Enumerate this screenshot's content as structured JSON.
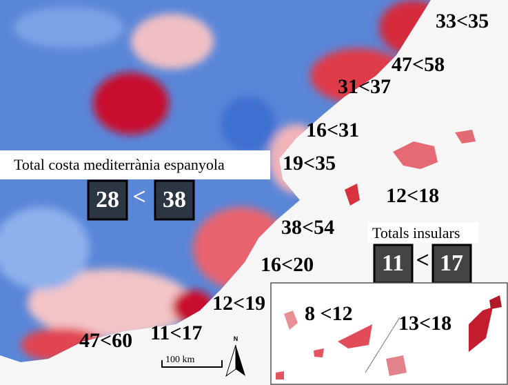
{
  "labels": [
    "33<35",
    "47<58",
    "31<37",
    "16<31",
    "19<35",
    "12<18",
    "38<54",
    "16<20",
    "12<19",
    "11<17",
    "47<60",
    "8 <12",
    "13<18"
  ],
  "mainland_total": {
    "title": "Total costa mediterrània espanyola",
    "left": "28",
    "sign": "<",
    "right": "38"
  },
  "island_total": {
    "title": "Totals insulars",
    "left": "11",
    "sign": "<",
    "right": "17"
  },
  "scale": "100 km",
  "north": "N"
}
